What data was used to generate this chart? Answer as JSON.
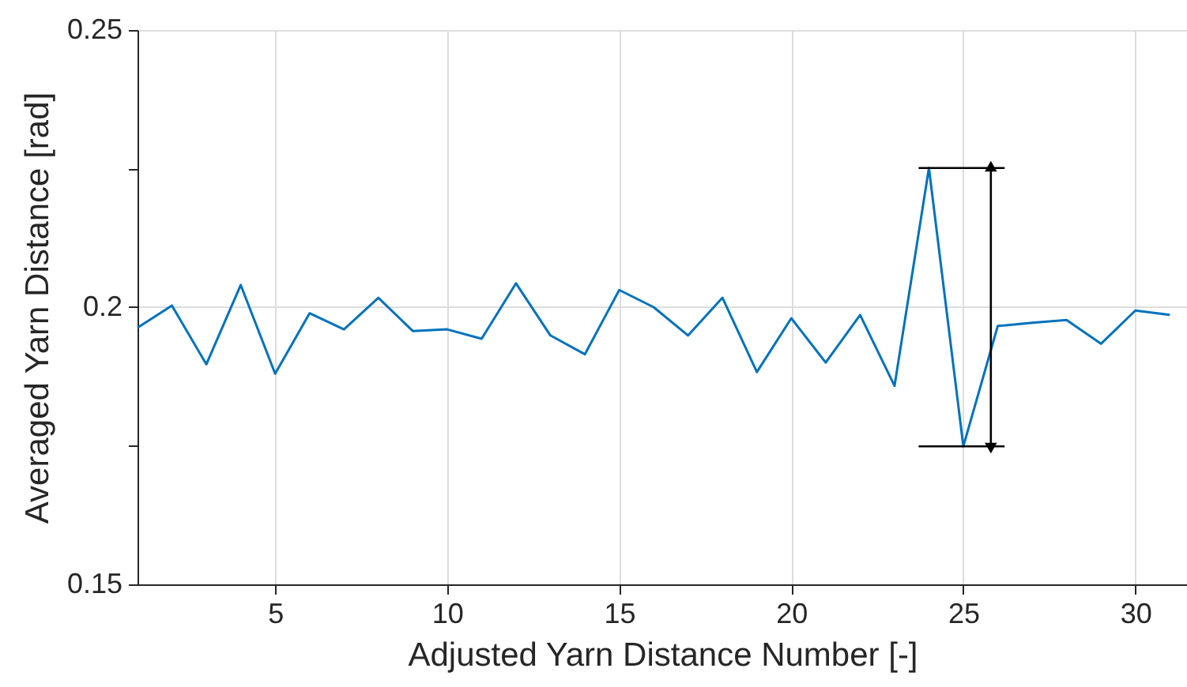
{
  "chart_data": {
    "type": "line",
    "xlabel": "Adjusted Yarn Distance Number [-]",
    "ylabel": "Averaged Yarn Distance [rad]",
    "x": [
      1,
      2,
      3,
      4,
      5,
      6,
      7,
      8,
      9,
      10,
      11,
      12,
      13,
      14,
      15,
      16,
      17,
      18,
      19,
      20,
      21,
      22,
      23,
      24,
      25,
      26,
      27,
      28,
      29,
      30,
      31
    ],
    "series": [
      {
        "color": "#0072bd",
        "values": [
          0.1963,
          0.2003,
          0.1897,
          0.204,
          0.188,
          0.1989,
          0.196,
          0.2017,
          0.1957,
          0.196,
          0.1943,
          0.2043,
          0.1949,
          0.1915,
          0.2031,
          0.2,
          0.1949,
          0.2017,
          0.1883,
          0.198,
          0.19,
          0.1986,
          0.1858,
          0.2251,
          0.1749,
          0.1966,
          0.1972,
          0.1977,
          0.1934,
          0.1994,
          0.1986
        ]
      }
    ],
    "xlim": [
      1,
      31.5
    ],
    "xticks": [
      5,
      10,
      15,
      20,
      25,
      30
    ],
    "ylim": [
      0.15,
      0.25
    ],
    "yticks": [
      {
        "value": 0.15,
        "label": "0.15"
      },
      {
        "value": 0.175,
        "label": null
      },
      {
        "value": 0.2,
        "label": "0.2"
      },
      {
        "value": 0.225,
        "label": null
      },
      {
        "value": 0.25,
        "label": "0.25"
      }
    ],
    "ref_lines": [
      {
        "axis": "y",
        "value": 0.2251,
        "color": "#000000"
      },
      {
        "axis": "y",
        "value": 0.1749,
        "color": "#000000"
      }
    ],
    "grid": true,
    "marker": "none",
    "line_style": "solid"
  }
}
